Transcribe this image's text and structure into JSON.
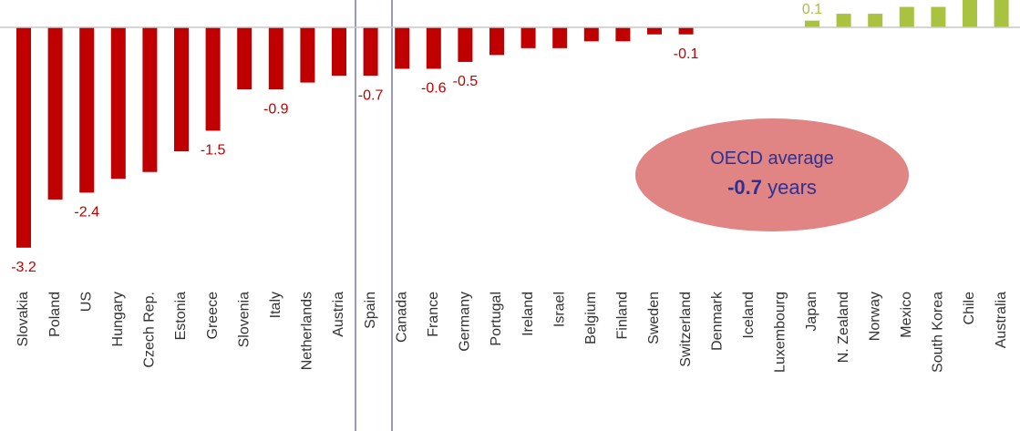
{
  "chart_data": {
    "type": "bar",
    "categories": [
      "Slovakia",
      "Poland",
      "US",
      "Hungary",
      "Czech Rep.",
      "Estonia",
      "Greece",
      "Slovenia",
      "Italy",
      "Netherlands",
      "Austria",
      "Spain",
      "Canada",
      "France",
      "Germany",
      "Portugal",
      "Ireland",
      "Israel",
      "Belgium",
      "Finland",
      "Sweden",
      "Switzerland",
      "Denmark",
      "Iceland",
      "Luxembourg",
      "Japan",
      "N. Zealand",
      "Norway",
      "Mexico",
      "South Korea",
      "Chile",
      "Australia"
    ],
    "values": [
      -3.2,
      -2.5,
      -2.4,
      -2.2,
      -2.1,
      -1.8,
      -1.5,
      -0.9,
      -0.9,
      -0.8,
      -0.7,
      -0.7,
      -0.6,
      -0.6,
      -0.5,
      -0.4,
      -0.3,
      -0.3,
      -0.2,
      -0.2,
      -0.1,
      -0.1,
      0,
      0,
      0,
      0.1,
      0.2,
      0.2,
      0.3,
      0.3,
      0.4,
      0.5
    ],
    "value_labels": [
      "-3.2",
      null,
      "-2.4",
      null,
      null,
      null,
      "-1.5",
      null,
      "-0.9",
      null,
      null,
      "-0.7",
      null,
      "-0.6",
      "-0.5",
      null,
      null,
      null,
      null,
      null,
      null,
      "-0.1",
      null,
      null,
      null,
      "0.1",
      null,
      null,
      null,
      null,
      null,
      null
    ],
    "negative_color": "#c00000",
    "positive_color": "#a9c23f",
    "ylim": [
      -3.6,
      0.4
    ],
    "annotation": {
      "line1": "OECD average",
      "value": "-0.7",
      "unit": "years"
    }
  }
}
